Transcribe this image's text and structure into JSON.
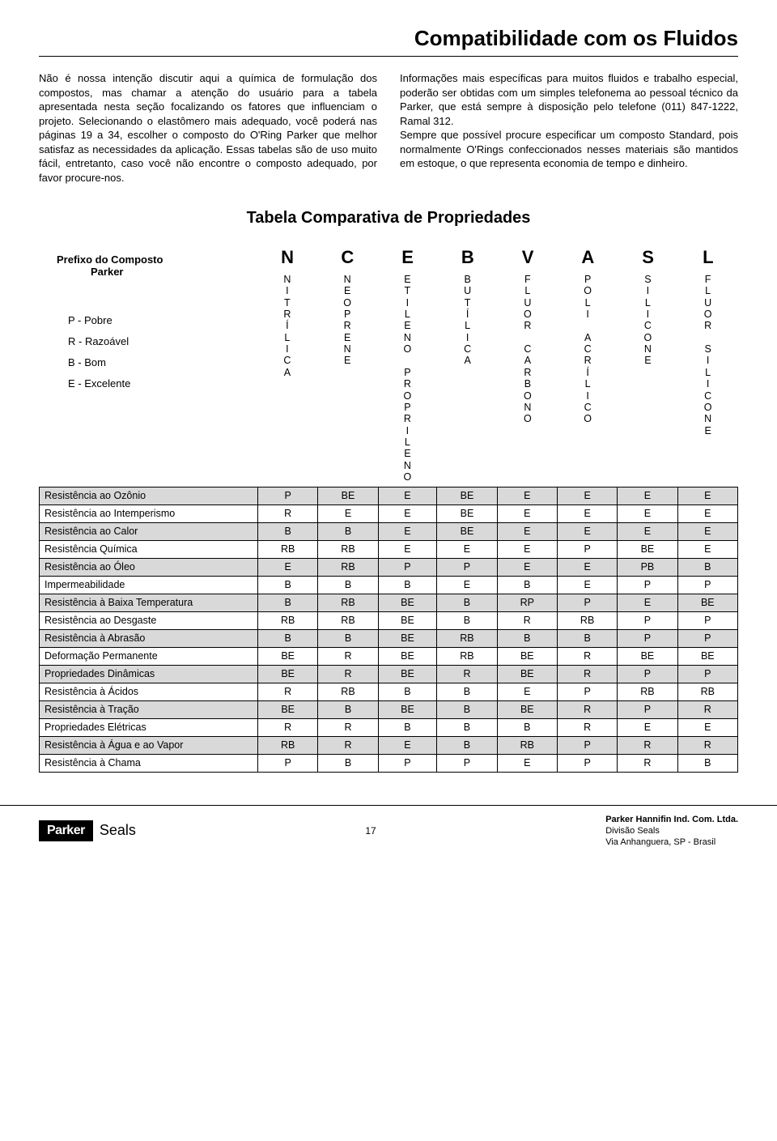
{
  "title": "Compatibilidade com os Fluidos",
  "paragraph_left": "Não é nossa intenção discutir aqui a química de formulação dos compostos, mas chamar a atenção do usuário para a tabela apresentada nesta seção focalizando os fatores que influenciam o projeto. Selecionando o elastômero mais adequado, você poderá nas páginas 19 a 34, escolher o composto do O'Ring Parker que melhor satisfaz as necessidades da aplicação. Essas tabelas são de uso muito fácil, entretanto, caso você não encontre o composto adequado, por favor procure-nos.",
  "paragraph_right": "Informações mais específicas para muitos fluidos e trabalho especial, poderão ser obtidas com um simples telefonema ao pessoal técnico da Parker, que está sempre à disposição pelo telefone (011) 847-1222, Ramal 312.\nSempre que possível procure especificar um composto Standard, pois normalmente O'Rings confeccionados nesses materiais são mantidos em estoque, o que representa economia de tempo e dinheiro.",
  "table_title": "Tabela Comparativa de Propriedades",
  "legend": {
    "prefix_line1": "Prefixo do Composto",
    "prefix_line2": "Parker",
    "codes": [
      "P - Pobre",
      "R - Razoável",
      "B - Bom",
      "E - Excelente"
    ]
  },
  "columns": [
    {
      "code": "N",
      "word": "NITRÍLICA"
    },
    {
      "code": "C",
      "word": "NEOPRENE"
    },
    {
      "code": "E",
      "word": "ETILENO PROPRILENO"
    },
    {
      "code": "B",
      "word": "BUTÍLICA"
    },
    {
      "code": "V",
      "word": "FLUOR CARBONO"
    },
    {
      "code": "A",
      "word": "POLI ACRÍLICO"
    },
    {
      "code": "S",
      "word": "SILICONE"
    },
    {
      "code": "L",
      "word": "FLUOR SILICONE"
    }
  ],
  "rows": [
    {
      "label": "Resistência ao Ozônio",
      "vals": [
        "P",
        "BE",
        "E",
        "BE",
        "E",
        "E",
        "E",
        "E"
      ],
      "shade": true
    },
    {
      "label": "Resistência ao Intemperismo",
      "vals": [
        "R",
        "E",
        "E",
        "BE",
        "E",
        "E",
        "E",
        "E"
      ],
      "shade": false
    },
    {
      "label": "Resistência ao Calor",
      "vals": [
        "B",
        "B",
        "E",
        "BE",
        "E",
        "E",
        "E",
        "E"
      ],
      "shade": true
    },
    {
      "label": "Resistência Química",
      "vals": [
        "RB",
        "RB",
        "E",
        "E",
        "E",
        "P",
        "BE",
        "E"
      ],
      "shade": false
    },
    {
      "label": "Resistência ao Óleo",
      "vals": [
        "E",
        "RB",
        "P",
        "P",
        "E",
        "E",
        "PB",
        "B"
      ],
      "shade": true
    },
    {
      "label": "Impermeabilidade",
      "vals": [
        "B",
        "B",
        "B",
        "E",
        "B",
        "E",
        "P",
        "P"
      ],
      "shade": false
    },
    {
      "label": "Resistência à Baixa Temperatura",
      "vals": [
        "B",
        "RB",
        "BE",
        "B",
        "RP",
        "P",
        "E",
        "BE"
      ],
      "shade": true
    },
    {
      "label": "Resistência ao Desgaste",
      "vals": [
        "RB",
        "RB",
        "BE",
        "B",
        "R",
        "RB",
        "P",
        "P"
      ],
      "shade": false
    },
    {
      "label": "Resistência à Abrasão",
      "vals": [
        "B",
        "B",
        "BE",
        "RB",
        "B",
        "B",
        "P",
        "P"
      ],
      "shade": true
    },
    {
      "label": "Deformação Permanente",
      "vals": [
        "BE",
        "R",
        "BE",
        "RB",
        "BE",
        "R",
        "BE",
        "BE"
      ],
      "shade": false
    },
    {
      "label": "Propriedades Dinâmicas",
      "vals": [
        "BE",
        "R",
        "BE",
        "R",
        "BE",
        "R",
        "P",
        "P"
      ],
      "shade": true
    },
    {
      "label": "Resistência à Ácidos",
      "vals": [
        "R",
        "RB",
        "B",
        "B",
        "E",
        "P",
        "RB",
        "RB"
      ],
      "shade": false
    },
    {
      "label": "Resistência à Tração",
      "vals": [
        "BE",
        "B",
        "BE",
        "B",
        "BE",
        "R",
        "P",
        "R"
      ],
      "shade": true
    },
    {
      "label": "Propriedades Elétricas",
      "vals": [
        "R",
        "R",
        "B",
        "B",
        "B",
        "R",
        "E",
        "E"
      ],
      "shade": false
    },
    {
      "label": "Resistência à Água e ao Vapor",
      "vals": [
        "RB",
        "R",
        "E",
        "B",
        "RB",
        "P",
        "R",
        "R"
      ],
      "shade": true
    },
    {
      "label": "Resistência à Chama",
      "vals": [
        "P",
        "B",
        "P",
        "P",
        "E",
        "P",
        "R",
        "B"
      ],
      "shade": false
    }
  ],
  "footer": {
    "logo_text": "Parker",
    "seals": "Seals",
    "page_number": "17",
    "company_bold": "Parker Hannifin Ind. Com. Ltda.",
    "company_line2": "Divisão Seals",
    "company_line3": "Via Anhanguera, SP - Brasil"
  },
  "style": {
    "shade_color": "#d9d9d9",
    "border_color": "#000000",
    "background": "#ffffff"
  }
}
